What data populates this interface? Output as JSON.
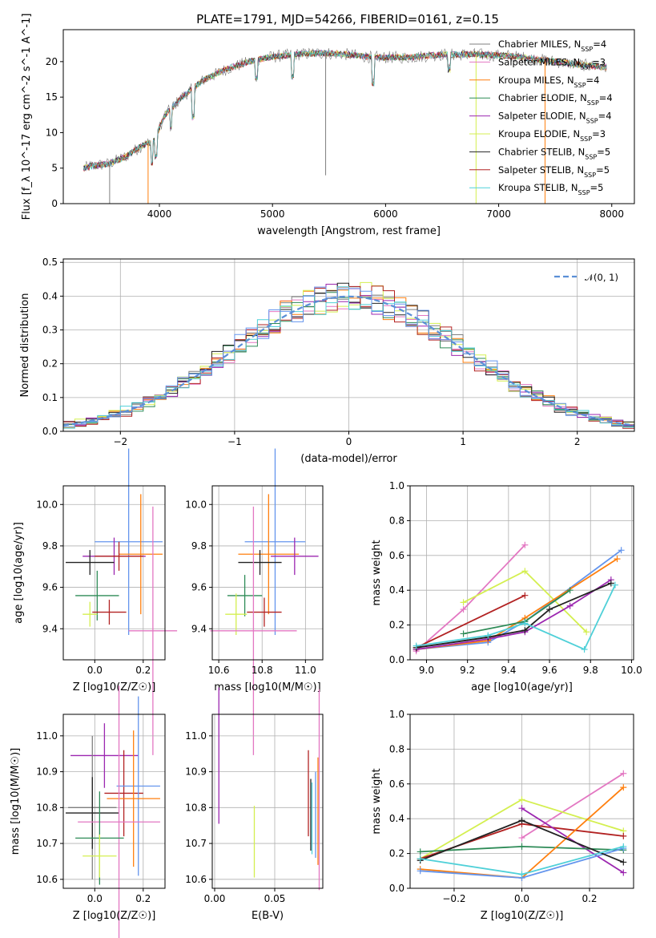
{
  "figure": {
    "title": "PLATE=1791, MJD=54266, FIBERID=0161, z=0.15"
  },
  "colors": {
    "Chabrier MILES": "#7f7f7f",
    "Salpeter MILES": "#e377c2",
    "Kroupa MILES": "#ff7f0e",
    "Chabrier ELODIE": "#2e8b57",
    "Salpeter ELODIE": "#9c27b0",
    "Kroupa ELODIE": "#d4ef50",
    "Chabrier STELIB": "#222222",
    "Salpeter STELIB": "#b22222",
    "Kroupa STELIB": "#4fd0d8",
    "Extra": "#6495ed"
  },
  "chart_data": [
    {
      "id": "spectrum",
      "type": "line",
      "xlabel": "wavelength [Angstrom, rest frame]",
      "ylabel": "Flux [f_λ 10^-17 erg cm^-2 s^-1 A^-1]",
      "xlim": [
        3150,
        8200
      ],
      "ylim": [
        0,
        24.5
      ],
      "xticks": [
        4000,
        5000,
        6000,
        7000,
        8000
      ],
      "yticks": [
        0,
        5,
        10,
        15,
        20
      ],
      "continuum": [
        [
          3330,
          5
        ],
        [
          3400,
          5.3
        ],
        [
          3550,
          5.6
        ],
        [
          3700,
          6.6
        ],
        [
          3850,
          8.2
        ],
        [
          3950,
          8.8
        ],
        [
          4050,
          12.5
        ],
        [
          4200,
          15.0
        ],
        [
          4400,
          17.5
        ],
        [
          4600,
          19.0
        ],
        [
          4800,
          20.0
        ],
        [
          5000,
          20.7
        ],
        [
          5200,
          21.0
        ],
        [
          5400,
          21.2
        ],
        [
          5600,
          21.1
        ],
        [
          5900,
          20.6
        ],
        [
          6200,
          20.6
        ],
        [
          6500,
          21.0
        ],
        [
          6800,
          21.0
        ],
        [
          7100,
          20.8
        ],
        [
          7400,
          20.2
        ],
        [
          7700,
          19.6
        ],
        [
          7950,
          19.2
        ]
      ],
      "legend": [
        {
          "label": "Chabrier MILES, N",
          "sub": "SSP",
          "n": "=4"
        },
        {
          "label": "Salpeter MILES, N",
          "sub": "SSP",
          "n": "=3"
        },
        {
          "label": "Kroupa MILES, N",
          "sub": "SSP",
          "n": "=4"
        },
        {
          "label": "Chabrier ELODIE, N",
          "sub": "SSP",
          "n": "=4"
        },
        {
          "label": "Salpeter ELODIE, N",
          "sub": "SSP",
          "n": "=4"
        },
        {
          "label": "Kroupa ELODIE, N",
          "sub": "SSP",
          "n": "=3"
        },
        {
          "label": "Chabrier STELIB, N",
          "sub": "SSP",
          "n": "=5"
        },
        {
          "label": "Salpeter STELIB, N",
          "sub": "SSP",
          "n": "=5"
        },
        {
          "label": "Kroupa STELIB, N",
          "sub": "SSP",
          "n": "=5"
        }
      ],
      "legend_placement": "right"
    },
    {
      "id": "residuals",
      "type": "histogram",
      "xlabel": "(data-model)/error",
      "ylabel": "Normed distribution",
      "xlim": [
        -2.5,
        2.5
      ],
      "ylim": [
        0,
        0.51
      ],
      "xticks": [
        -2,
        -1,
        0,
        1,
        2
      ],
      "yticks": [
        0.0,
        0.1,
        0.2,
        0.3,
        0.4,
        0.5
      ],
      "bin_width": 0.1,
      "reference_curve": "N(0,1)",
      "legend_label": "𝒩(0, 1)",
      "legend_placement": "top-right",
      "grid": true
    },
    {
      "id": "age_vs_Z",
      "type": "scatter",
      "xlabel": "Z [log10(Z/Z☉)]",
      "ylabel": "age  [log10(age/yr)]",
      "xlim": [
        -0.13,
        0.29
      ],
      "ylim": [
        9.25,
        10.09
      ],
      "xticks": [
        0.0,
        0.2
      ],
      "yticks": [
        9.4,
        9.6,
        9.8,
        10.0
      ],
      "grid": true,
      "points": [
        {
          "series": "Extra",
          "x": 0.14,
          "y": 9.82,
          "xerr": 0.14,
          "yerr": 0.45
        },
        {
          "series": "Kroupa MILES",
          "x": 0.19,
          "y": 9.76,
          "xerr": 0.09,
          "yerr": 0.29
        },
        {
          "series": "Salpeter ELODIE",
          "x": 0.08,
          "y": 9.75,
          "xerr": 0.13,
          "yerr": 0.09
        },
        {
          "series": "Salpeter STELIB",
          "x": 0.1,
          "y": 9.75,
          "xerr": 0.1,
          "yerr": 0.07
        },
        {
          "series": "Chabrier STELIB",
          "x": -0.02,
          "y": 9.72,
          "xerr": 0.1,
          "yerr": 0.06
        },
        {
          "series": "Chabrier ELODIE",
          "x": 0.01,
          "y": 9.56,
          "xerr": 0.09,
          "yerr": 0.12
        },
        {
          "series": "Salpeter STELIB",
          "x": 0.06,
          "y": 9.48,
          "xerr": 0.07,
          "yerr": 0.06
        },
        {
          "series": "Kroupa ELODIE",
          "x": -0.02,
          "y": 9.47,
          "xerr": 0.03,
          "yerr": 0.06
        },
        {
          "series": "Salpeter MILES",
          "x": 0.24,
          "y": 9.39,
          "xerr": 0.1,
          "yerr": 0.6
        }
      ]
    },
    {
      "id": "age_vs_mass",
      "type": "scatter",
      "xlabel": "mass [log10(M/M☉)]",
      "ylabel": "",
      "xlim": [
        10.57,
        11.08
      ],
      "ylim": [
        9.25,
        10.09
      ],
      "xticks": [
        10.6,
        10.8,
        11.0
      ],
      "yticks": [
        9.4,
        9.6,
        9.8,
        10.0
      ],
      "grid": true,
      "points": [
        {
          "series": "Extra",
          "x": 10.86,
          "y": 9.82,
          "xerr": 0.14,
          "yerr": 0.45
        },
        {
          "series": "Kroupa MILES",
          "x": 10.83,
          "y": 9.76,
          "xerr": 0.14,
          "yerr": 0.29
        },
        {
          "series": "Salpeter ELODIE",
          "x": 10.95,
          "y": 9.75,
          "xerr": 0.11,
          "yerr": 0.09
        },
        {
          "series": "Chabrier STELIB",
          "x": 10.79,
          "y": 9.72,
          "xerr": 0.1,
          "yerr": 0.06
        },
        {
          "series": "Chabrier ELODIE",
          "x": 10.72,
          "y": 9.56,
          "xerr": 0.08,
          "yerr": 0.1
        },
        {
          "series": "Salpeter STELIB",
          "x": 10.81,
          "y": 9.48,
          "xerr": 0.08,
          "yerr": 0.07
        },
        {
          "series": "Kroupa ELODIE",
          "x": 10.68,
          "y": 9.47,
          "xerr": 0.05,
          "yerr": 0.1
        },
        {
          "series": "Salpeter MILES",
          "x": 10.76,
          "y": 9.39,
          "xerr": 0.2,
          "yerr": 0.6
        }
      ]
    },
    {
      "id": "mass_weight_vs_age",
      "type": "line",
      "xlabel": "age  [log10(age/yr)]",
      "ylabel": "mass weight",
      "xlim": [
        8.92,
        10.01
      ],
      "ylim": [
        0,
        1.0
      ],
      "xticks": [
        9.0,
        9.2,
        9.4,
        9.6,
        9.8,
        10.0
      ],
      "yticks": [
        0.0,
        0.2,
        0.4,
        0.6,
        0.8,
        1.0
      ],
      "grid": true,
      "series": [
        {
          "series": "Salpeter MILES",
          "points": [
            [
              8.95,
              0.05
            ],
            [
              9.18,
              0.29
            ],
            [
              9.48,
              0.66
            ]
          ]
        },
        {
          "series": "Kroupa ELODIE",
          "points": [
            [
              9.18,
              0.33
            ],
            [
              9.48,
              0.51
            ],
            [
              9.78,
              0.16
            ]
          ]
        },
        {
          "series": "Extra",
          "points": [
            [
              8.95,
              0.06
            ],
            [
              9.3,
              0.1
            ],
            [
              9.48,
              0.22
            ],
            [
              9.95,
              0.63
            ]
          ]
        },
        {
          "series": "Kroupa MILES",
          "points": [
            [
              8.95,
              0.06
            ],
            [
              9.3,
              0.11
            ],
            [
              9.48,
              0.24
            ],
            [
              9.93,
              0.58
            ]
          ]
        },
        {
          "series": "Chabrier ELODIE",
          "points": [
            [
              9.18,
              0.15
            ],
            [
              9.48,
              0.22
            ],
            [
              9.7,
              0.4
            ]
          ]
        },
        {
          "series": "Salpeter ELODIE",
          "points": [
            [
              8.95,
              0.06
            ],
            [
              9.3,
              0.12
            ],
            [
              9.48,
              0.16
            ],
            [
              9.7,
              0.31
            ],
            [
              9.9,
              0.46
            ]
          ]
        },
        {
          "series": "Salpeter STELIB",
          "points": [
            [
              8.95,
              0.07
            ],
            [
              9.48,
              0.37
            ]
          ]
        },
        {
          "series": "Chabrier STELIB",
          "points": [
            [
              8.95,
              0.07
            ],
            [
              9.3,
              0.13
            ],
            [
              9.48,
              0.17
            ],
            [
              9.6,
              0.29
            ],
            [
              9.9,
              0.44
            ]
          ]
        },
        {
          "series": "Kroupa STELIB",
          "points": [
            [
              8.95,
              0.08
            ],
            [
              9.3,
              0.14
            ],
            [
              9.48,
              0.21
            ],
            [
              9.77,
              0.06
            ],
            [
              9.92,
              0.43
            ]
          ]
        }
      ]
    },
    {
      "id": "mass_vs_Z",
      "type": "scatter",
      "xlabel": "Z [log10(Z/Z☉)]",
      "ylabel": "mass [log10(M/M☉)]",
      "xlim": [
        -0.13,
        0.29
      ],
      "ylim": [
        10.575,
        11.06
      ],
      "xticks": [
        0.0,
        0.2
      ],
      "yticks": [
        10.6,
        10.7,
        10.8,
        10.9,
        11.0
      ],
      "grid": true,
      "points": [
        {
          "series": "Salpeter ELODIE",
          "x": 0.04,
          "y": 10.945,
          "xerr": 0.14,
          "yerr": 0.09
        },
        {
          "series": "Salpeter STELIB",
          "x": 0.12,
          "y": 10.84,
          "xerr": 0.08,
          "yerr": 0.12
        },
        {
          "series": "Extra",
          "x": 0.18,
          "y": 10.86,
          "xerr": 0.09,
          "yerr": 0.25
        },
        {
          "series": "Kroupa MILES",
          "x": 0.16,
          "y": 10.825,
          "xerr": 0.11,
          "yerr": 0.19
        },
        {
          "series": "Chabrier MILES",
          "x": -0.01,
          "y": 10.8,
          "xerr": 0.1,
          "yerr": 0.2
        },
        {
          "series": "Chabrier STELIB",
          "x": -0.01,
          "y": 10.785,
          "xerr": 0.11,
          "yerr": 0.1
        },
        {
          "series": "Salpeter MILES",
          "x": 0.1,
          "y": 10.76,
          "xerr": 0.17,
          "yerr": 0.38
        },
        {
          "series": "Chabrier ELODIE",
          "x": 0.02,
          "y": 10.715,
          "xerr": 0.1,
          "yerr": 0.13
        },
        {
          "series": "Kroupa ELODIE",
          "x": 0.02,
          "y": 10.665,
          "xerr": 0.07,
          "yerr": 0.06
        }
      ]
    },
    {
      "id": "mass_vs_ebv",
      "type": "scatter",
      "xlabel": "E(B-V)",
      "ylabel": "",
      "xlim": [
        -0.002,
        0.09
      ],
      "ylim": [
        10.575,
        11.06
      ],
      "xticks": [
        0.0,
        0.05
      ],
      "yticks": [
        10.6,
        10.7,
        10.8,
        10.9,
        11.0
      ],
      "grid": true,
      "points": [
        {
          "series": "Salpeter ELODIE",
          "x": 0.0035,
          "y": 10.945,
          "xerr": 0,
          "yerr": 0.19
        },
        {
          "series": "Kroupa ELODIE",
          "x": 0.033,
          "y": 10.705,
          "xerr": 0,
          "yerr": 0.1
        },
        {
          "series": "Salpeter STELIB",
          "x": 0.078,
          "y": 10.84,
          "xerr": 0,
          "yerr": 0.12
        },
        {
          "series": "Chabrier STELIB",
          "x": 0.08,
          "y": 10.78,
          "xerr": 0,
          "yerr": 0.1
        },
        {
          "series": "Kroupa STELIB",
          "x": 0.081,
          "y": 10.77,
          "xerr": 0,
          "yerr": 0.1
        },
        {
          "series": "Extra",
          "x": 0.084,
          "y": 10.78,
          "xerr": 0,
          "yerr": 0.12
        },
        {
          "series": "Kroupa MILES",
          "x": 0.086,
          "y": 10.79,
          "xerr": 0,
          "yerr": 0.15
        },
        {
          "series": "Salpeter MILES",
          "x": 0.087,
          "y": 10.85,
          "xerr": 0,
          "yerr": 0.28
        }
      ]
    },
    {
      "id": "mass_weight_vs_Z",
      "type": "line",
      "xlabel": "Z [log10(Z/Z☉)]",
      "ylabel": "mass weight",
      "xlim": [
        -0.33,
        0.33
      ],
      "ylim": [
        0,
        1.0
      ],
      "xticks": [
        -0.2,
        0.0,
        0.2
      ],
      "yticks": [
        0.0,
        0.2,
        0.4,
        0.6,
        0.8,
        1.0
      ],
      "grid": true,
      "series": [
        {
          "series": "Salpeter MILES",
          "points": [
            [
              0,
              0.29
            ],
            [
              0.3,
              0.66
            ]
          ]
        },
        {
          "series": "Kroupa ELODIE",
          "points": [
            [
              -0.3,
              0.17
            ],
            [
              0,
              0.51
            ],
            [
              0.3,
              0.33
            ]
          ]
        },
        {
          "series": "Salpeter STELIB",
          "points": [
            [
              -0.3,
              0.17
            ],
            [
              0,
              0.37
            ],
            [
              0.3,
              0.3
            ]
          ]
        },
        {
          "series": "Salpeter ELODIE",
          "points": [
            [
              0,
              0.46
            ],
            [
              0.3,
              0.09
            ]
          ]
        },
        {
          "series": "Chabrier ELODIE",
          "points": [
            [
              -0.3,
              0.21
            ],
            [
              0,
              0.24
            ],
            [
              0.3,
              0.22
            ]
          ]
        },
        {
          "series": "Kroupa MILES",
          "points": [
            [
              -0.3,
              0.11
            ],
            [
              0,
              0.06
            ],
            [
              0.3,
              0.58
            ]
          ]
        },
        {
          "series": "Extra",
          "points": [
            [
              -0.3,
              0.1
            ],
            [
              0,
              0.06
            ],
            [
              0.3,
              0.23
            ]
          ]
        },
        {
          "series": "Chabrier STELIB",
          "points": [
            [
              -0.3,
              0.16
            ],
            [
              0,
              0.39
            ],
            [
              0.3,
              0.15
            ]
          ]
        },
        {
          "series": "Kroupa STELIB",
          "points": [
            [
              -0.3,
              0.17
            ],
            [
              0,
              0.08
            ],
            [
              0.3,
              0.24
            ]
          ]
        }
      ]
    }
  ]
}
